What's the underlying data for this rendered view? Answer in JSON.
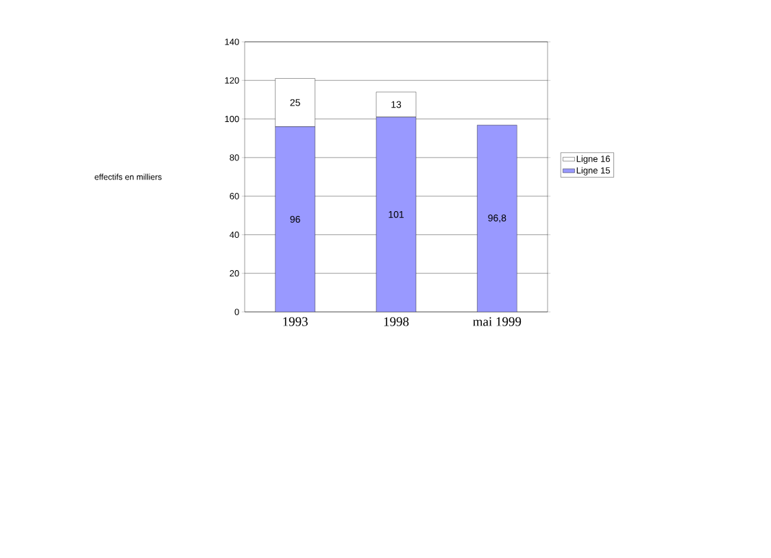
{
  "chart_data": {
    "type": "bar",
    "stacked": true,
    "annotations": [
      "effectifs en milliers"
    ],
    "categories": [
      "1993",
      "1998",
      "mai 1999"
    ],
    "series": [
      {
        "name": "Ligne 15",
        "color": "#9999ff",
        "values": [
          96,
          101,
          96.8
        ],
        "value_labels": [
          "96",
          "101",
          "96,8"
        ]
      },
      {
        "name": "Ligne 16",
        "color": "#ffffff",
        "values": [
          25,
          13,
          null
        ],
        "value_labels": [
          "25",
          "13",
          null
        ]
      }
    ],
    "ylim": [
      0,
      140
    ],
    "yticks": [
      0,
      20,
      40,
      60,
      80,
      100,
      120,
      140
    ],
    "grid": "y",
    "legend": "right"
  }
}
